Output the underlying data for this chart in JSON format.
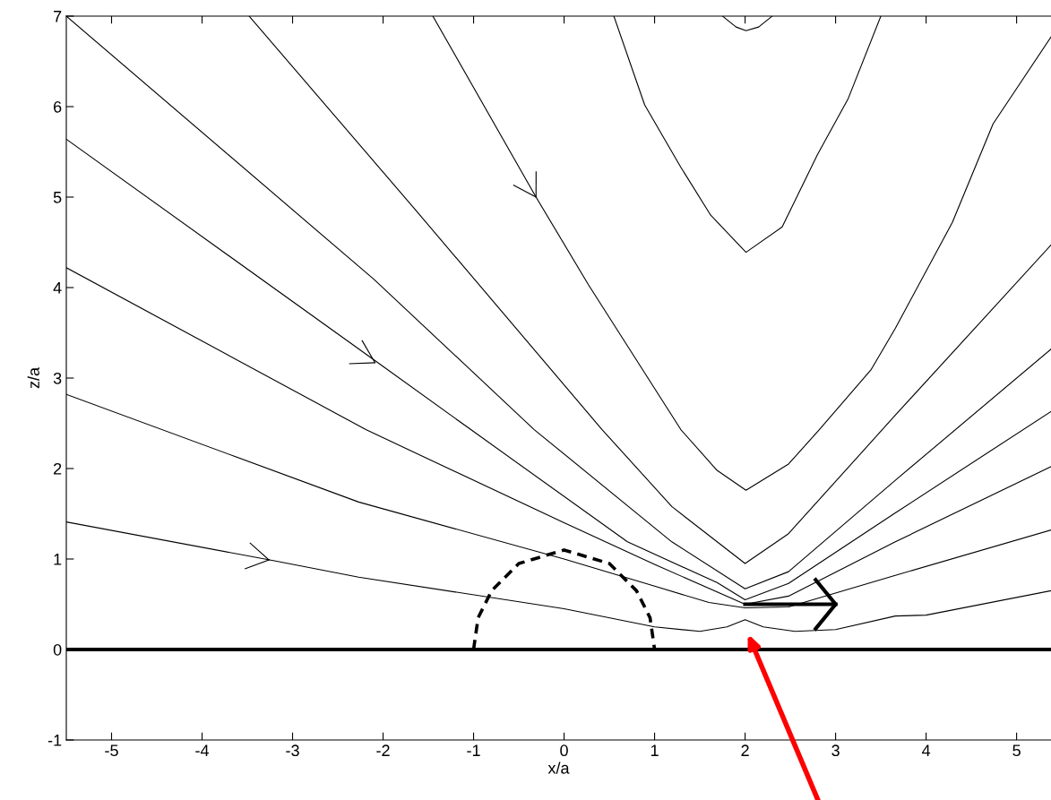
{
  "chart_data": {
    "type": "line",
    "xlabel": "x/a",
    "ylabel": "z/a",
    "xlim": [
      -5.5,
      5.38
    ],
    "ylim": [
      -1,
      7
    ],
    "xticks": [
      -5,
      -4,
      -3,
      -2,
      -1,
      0,
      1,
      2,
      3,
      4,
      5
    ],
    "yticks": [
      -1,
      0,
      1,
      2,
      3,
      4,
      5,
      6,
      7
    ],
    "grid": false,
    "legend": false,
    "ref_lines": [
      {
        "axis": "y",
        "value": 0,
        "color": "#000000"
      }
    ],
    "series": [
      {
        "color": "#000000",
        "x": [
          1.75,
          1.9,
          2.01,
          2.15,
          2.3
        ],
        "values": [
          7.0,
          6.88,
          6.84,
          6.88,
          7.0
        ]
      },
      {
        "color": "#000000",
        "x": [
          0.55,
          0.89,
          1.29,
          1.62,
          2.01,
          2.41,
          2.8,
          3.14,
          3.5
        ],
        "values": [
          7.0,
          6.02,
          5.33,
          4.8,
          4.39,
          4.67,
          5.47,
          6.09,
          7.0
        ]
      },
      {
        "color": "#000000",
        "x": [
          -1.45,
          -0.31,
          0.27,
          1.29,
          1.69,
          2.01,
          2.48,
          2.82,
          3.39,
          3.66,
          4.29,
          4.74,
          5.38
        ],
        "values": [
          7.0,
          5.0,
          4.03,
          2.43,
          1.98,
          1.76,
          2.05,
          2.43,
          3.09,
          3.55,
          4.72,
          5.81,
          6.77
        ]
      },
      {
        "color": "#000000",
        "x": [
          -3.48,
          -1.66,
          0.42,
          1.19,
          2.0,
          2.48,
          3.66,
          5.38
        ],
        "values": [
          7.0,
          4.88,
          2.43,
          1.58,
          0.95,
          1.28,
          2.59,
          4.47
        ]
      },
      {
        "color": "#000000",
        "x": [
          -5.5,
          -2.1,
          -0.33,
          1.19,
          2.0,
          2.48,
          3.66,
          5.38
        ],
        "values": [
          7.0,
          4.09,
          2.43,
          1.19,
          0.67,
          0.86,
          1.87,
          3.32
        ]
      },
      {
        "color": "#000000",
        "x": [
          -5.5,
          -2.1,
          -1.03,
          0.7,
          1.69,
          2.0,
          2.48,
          3.66,
          5.38
        ],
        "values": [
          5.64,
          3.2,
          2.43,
          1.19,
          0.74,
          0.55,
          0.73,
          1.51,
          2.63
        ]
      },
      {
        "color": "#000000",
        "x": [
          -5.5,
          -2.19,
          0,
          1,
          2,
          2.48,
          3.66,
          5.38
        ],
        "values": [
          4.22,
          2.43,
          1.4,
          0.94,
          0.5,
          0.59,
          1.19,
          2.02
        ]
      },
      {
        "color": "#000000",
        "x": [
          -5.5,
          -2.27,
          0,
          1,
          1.6,
          2,
          2.48,
          3.66,
          5.38
        ],
        "values": [
          2.82,
          1.63,
          1.0,
          0.7,
          0.52,
          0.46,
          0.47,
          0.82,
          1.32
        ]
      },
      {
        "color": "#000000",
        "x": [
          -5.5,
          -3.2,
          -2.27,
          0,
          1,
          1.5,
          1.8,
          2,
          2.2,
          2.55,
          3,
          3.66,
          4,
          5.38
        ],
        "values": [
          1.41,
          0.98,
          0.8,
          0.45,
          0.25,
          0.2,
          0.25,
          0.33,
          0.25,
          0.2,
          0.22,
          0.37,
          0.38,
          0.65
        ]
      },
      {
        "color": "#000000",
        "line_style": "dashed",
        "x": [
          -1,
          -0.95,
          -0.8,
          -0.5,
          0,
          0.5,
          0.8,
          0.95,
          1
        ],
        "values": [
          0,
          0.35,
          0.65,
          0.95,
          1.1,
          0.95,
          0.65,
          0.35,
          0
        ]
      }
    ]
  }
}
